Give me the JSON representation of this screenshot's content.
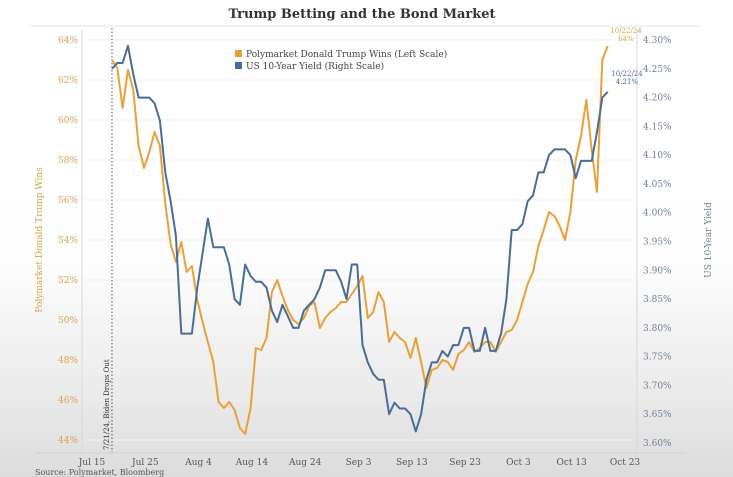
{
  "chart_data": {
    "type": "line",
    "title": "Trump Betting and the Bond Market",
    "xlabel": "",
    "ylabel_left": "Polymarket Donald Trump Wins",
    "ylabel_right": "US 10-Year Yield",
    "x_ticks": [
      "Jul 15",
      "Jul 25",
      "Aug 4",
      "Aug 14",
      "Aug 24",
      "Sep 3",
      "Sep 13",
      "Sep 23",
      "Oct 3",
      "Oct 13",
      "Oct 23"
    ],
    "x_tick_dates": [
      "2024-07-15",
      "2024-07-25",
      "2024-08-04",
      "2024-08-14",
      "2024-08-24",
      "2024-09-03",
      "2024-09-13",
      "2024-09-23",
      "2024-10-03",
      "2024-10-13",
      "2024-10-23"
    ],
    "xlim": [
      "2024-07-15",
      "2024-10-23"
    ],
    "ylim_left": [
      44,
      64
    ],
    "y_ticks_left": [
      "44%",
      "46%",
      "48%",
      "50%",
      "52%",
      "54%",
      "56%",
      "58%",
      "60%",
      "62%",
      "64%"
    ],
    "ylim_right": [
      3.6,
      4.3
    ],
    "y_ticks_right": [
      "3.60%",
      "3.65%",
      "3.70%",
      "3.75%",
      "3.80%",
      "3.85%",
      "3.90%",
      "3.95%",
      "4.00%",
      "4.05%",
      "4.10%",
      "4.15%",
      "4.20%",
      "4.25%",
      "4.30%"
    ],
    "grid": true,
    "legend_position": "top-left",
    "legend": [
      "Polymarket Donald Trump Wins (Left Scale)",
      "US 10-Year Yield (Right Scale)"
    ],
    "dates": [
      "2024-07-21",
      "2024-07-22",
      "2024-07-23",
      "2024-07-24",
      "2024-07-25",
      "2024-07-26",
      "2024-07-27",
      "2024-07-28",
      "2024-07-29",
      "2024-07-30",
      "2024-07-31",
      "2024-08-01",
      "2024-08-02",
      "2024-08-03",
      "2024-08-04",
      "2024-08-05",
      "2024-08-06",
      "2024-08-07",
      "2024-08-08",
      "2024-08-09",
      "2024-08-10",
      "2024-08-11",
      "2024-08-12",
      "2024-08-13",
      "2024-08-14",
      "2024-08-15",
      "2024-08-16",
      "2024-08-17",
      "2024-08-18",
      "2024-08-19",
      "2024-08-20",
      "2024-08-21",
      "2024-08-22",
      "2024-08-23",
      "2024-08-24",
      "2024-08-25",
      "2024-08-26",
      "2024-08-27",
      "2024-08-28",
      "2024-08-29",
      "2024-08-30",
      "2024-08-31",
      "2024-09-01",
      "2024-09-02",
      "2024-09-03",
      "2024-09-04",
      "2024-09-05",
      "2024-09-06",
      "2024-09-07",
      "2024-09-08",
      "2024-09-09",
      "2024-09-10",
      "2024-09-11",
      "2024-09-12",
      "2024-09-13",
      "2024-09-14",
      "2024-09-15",
      "2024-09-16",
      "2024-09-17",
      "2024-09-18",
      "2024-09-19",
      "2024-09-20",
      "2024-09-21",
      "2024-09-22",
      "2024-09-23",
      "2024-09-24",
      "2024-09-25",
      "2024-09-26",
      "2024-09-27",
      "2024-09-28",
      "2024-09-29",
      "2024-09-30",
      "2024-10-01",
      "2024-10-02",
      "2024-10-03",
      "2024-10-04",
      "2024-10-05",
      "2024-10-06",
      "2024-10-07",
      "2024-10-08",
      "2024-10-09",
      "2024-10-10",
      "2024-10-11",
      "2024-10-12",
      "2024-10-13",
      "2024-10-14",
      "2024-10-15",
      "2024-10-16",
      "2024-10-17",
      "2024-10-18",
      "2024-10-19",
      "2024-10-20",
      "2024-10-21",
      "2024-10-22"
    ],
    "series": [
      {
        "name": "Polymarket Donald Trump Wins (Left Scale)",
        "axis": "left",
        "color": "#e9a03b",
        "values": [
          63.0,
          62.6,
          60.6,
          62.5,
          61.5,
          58.7,
          57.6,
          58.4,
          59.4,
          58.7,
          55.8,
          53.8,
          52.9,
          53.9,
          52.4,
          52.7,
          51.0,
          49.9,
          48.9,
          47.9,
          45.9,
          45.6,
          45.9,
          45.5,
          44.6,
          44.3,
          45.6,
          48.6,
          48.5,
          49.1,
          51.4,
          52.0,
          51.2,
          50.5,
          50.0,
          49.8,
          50.1,
          50.7,
          50.9,
          49.6,
          50.1,
          50.4,
          50.6,
          50.9,
          50.9,
          51.3,
          51.7,
          52.2,
          50.1,
          50.4,
          51.4,
          50.9,
          48.9,
          49.4,
          49.1,
          48.9,
          48.1,
          49.1,
          47.9,
          46.6,
          47.5,
          47.6,
          48.0,
          47.9,
          47.5,
          48.3,
          48.5,
          48.9,
          48.4,
          48.6,
          48.9,
          48.9,
          48.4,
          48.9,
          49.4,
          49.5,
          50.0,
          50.9,
          51.8,
          52.4,
          53.7,
          54.5,
          55.4,
          55.2,
          54.7,
          54.0,
          55.4,
          58.0,
          59.2,
          61.0,
          58.5,
          56.4,
          63.0,
          63.7
        ]
      },
      {
        "name": "US 10-Year Yield (Right Scale)",
        "axis": "right",
        "color": "#4a6d95",
        "values": [
          4.25,
          4.26,
          4.26,
          4.29,
          4.24,
          4.2,
          4.2,
          4.2,
          4.19,
          4.16,
          4.07,
          4.02,
          3.96,
          3.79,
          3.79,
          3.79,
          3.87,
          3.93,
          3.99,
          3.94,
          3.94,
          3.94,
          3.91,
          3.85,
          3.84,
          3.91,
          3.89,
          3.88,
          3.88,
          3.87,
          3.83,
          3.81,
          3.84,
          3.82,
          3.8,
          3.8,
          3.83,
          3.84,
          3.85,
          3.87,
          3.9,
          3.9,
          3.9,
          3.88,
          3.85,
          3.91,
          3.91,
          3.77,
          3.74,
          3.72,
          3.71,
          3.71,
          3.65,
          3.67,
          3.66,
          3.66,
          3.65,
          3.62,
          3.65,
          3.71,
          3.74,
          3.74,
          3.76,
          3.75,
          3.77,
          3.77,
          3.8,
          3.8,
          3.76,
          3.76,
          3.8,
          3.76,
          3.76,
          3.79,
          3.85,
          3.97,
          3.97,
          3.98,
          4.02,
          4.03,
          4.07,
          4.07,
          4.1,
          4.11,
          4.11,
          4.11,
          4.1,
          4.06,
          4.09,
          4.09,
          4.09,
          4.14,
          4.2,
          4.21
        ]
      }
    ],
    "annotations": {
      "biden": {
        "date": "2024-07-21",
        "text": "7/21/24, Biden Drops Out"
      },
      "trump_end": {
        "date_text": "10/22/24",
        "value_text": "64%"
      },
      "yield_end": {
        "date_text": "10/22/24",
        "value_text": "4.21%"
      }
    },
    "source_left": "Source: Polymarket, Bloomberg"
  }
}
